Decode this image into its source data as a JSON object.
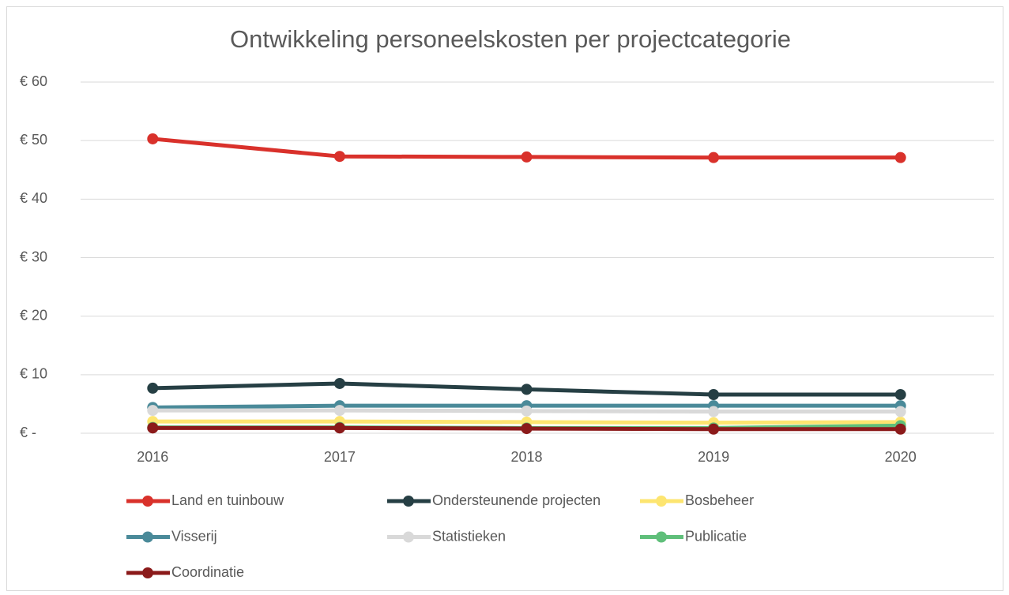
{
  "chart_data": {
    "type": "line",
    "title": "Ontwikkeling personeelskosten per projectcategorie",
    "categories": [
      "2016",
      "2017",
      "2018",
      "2019",
      "2020"
    ],
    "series": [
      {
        "name": "Land en tuinbouw",
        "color": "#d9312b",
        "values": [
          50.3,
          47.3,
          47.2,
          47.1,
          47.1
        ]
      },
      {
        "name": "Ondersteunende projecten",
        "color": "#263f44",
        "values": [
          7.7,
          8.5,
          7.5,
          6.6,
          6.6
        ]
      },
      {
        "name": "Bosbeheer",
        "color": "#fde570",
        "values": [
          2.0,
          2.0,
          1.9,
          1.8,
          1.9
        ]
      },
      {
        "name": "Visserij",
        "color": "#4a8a99",
        "values": [
          4.4,
          4.7,
          4.7,
          4.7,
          4.7
        ]
      },
      {
        "name": "Statistieken",
        "color": "#d9d9d9",
        "values": [
          3.9,
          3.9,
          3.8,
          3.7,
          3.7
        ]
      },
      {
        "name": "Publicatie",
        "color": "#5fbf7a",
        "values": [
          1.0,
          1.0,
          0.9,
          0.9,
          1.3
        ]
      },
      {
        "name": "Coordinatie",
        "color": "#8b1a1a",
        "values": [
          0.9,
          0.9,
          0.8,
          0.7,
          0.7
        ]
      }
    ],
    "ylim": [
      0,
      60
    ],
    "yticks": [
      {
        "value": 0,
        "label": "€ -"
      },
      {
        "value": 10,
        "label": "€ 10"
      },
      {
        "value": 20,
        "label": "€ 20"
      },
      {
        "value": 30,
        "label": "€ 30"
      },
      {
        "value": 40,
        "label": "€ 40"
      },
      {
        "value": 50,
        "label": "€ 50"
      },
      {
        "value": 60,
        "label": "€ 60"
      }
    ],
    "grid": true,
    "legend": "bottom"
  }
}
